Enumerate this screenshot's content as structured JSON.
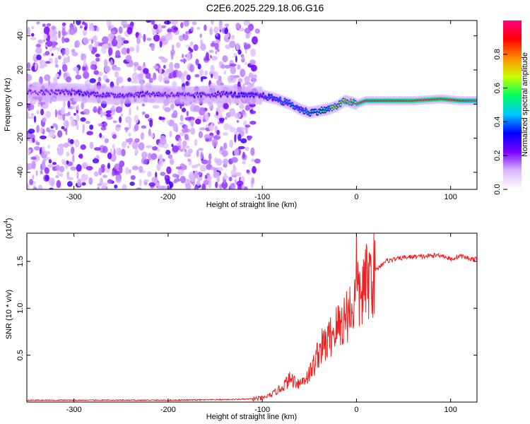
{
  "title": "C2E6.2025.229.18.06.G16",
  "chart_data": [
    {
      "type": "heatmap",
      "xlabel": "Height of straight line (km)",
      "ylabel": "Frequency (Hz)",
      "xlim": [
        -350,
        128
      ],
      "ylim": [
        -50,
        49
      ],
      "x_ticks": [
        -300,
        -200,
        -100,
        0,
        100
      ],
      "y_ticks": [
        -40,
        -20,
        0,
        20,
        40
      ],
      "colorbar": {
        "label": "Normalized spectral amplitude",
        "range": [
          0,
          1
        ],
        "ticks": [
          "0.0",
          "0.2",
          "0.4",
          "0.6",
          "0.8"
        ],
        "colors": [
          "#ffffff",
          "#d9b8ff",
          "#7a00ff",
          "#0000ff",
          "#00c8ff",
          "#00ff60",
          "#c8ff00",
          "#ff8c00",
          "#ff0000",
          "#ff0080"
        ]
      },
      "ridge": {
        "x": [
          -340,
          -300,
          -260,
          -220,
          -180,
          -140,
          -120,
          -100,
          -85,
          -70,
          -60,
          -50,
          -40,
          -30,
          -20,
          -12,
          -5,
          0,
          10,
          30,
          60,
          90,
          110,
          128
        ],
        "freq": [
          7,
          7,
          5,
          6,
          5,
          6,
          5,
          5,
          3,
          0,
          -3,
          -5,
          -4,
          -3,
          -1,
          2,
          1,
          0,
          2,
          2,
          2,
          3,
          2,
          2
        ],
        "amplitude": [
          0.25,
          0.3,
          0.3,
          0.3,
          0.28,
          0.3,
          0.35,
          0.35,
          0.45,
          0.5,
          0.45,
          0.55,
          0.6,
          0.65,
          0.75,
          0.8,
          0.8,
          0.85,
          0.9,
          0.92,
          0.95,
          0.95,
          0.9,
          0.85
        ]
      },
      "noise_region_x": [
        -350,
        -105
      ]
    },
    {
      "type": "line",
      "xlabel": "Height of straight line (km)",
      "ylabel": "SNR (10 * v/v)",
      "scale_note": "(x10",
      "scale_exp": "4",
      "xlim": [
        -350,
        128
      ],
      "ylim": [
        0,
        1.8
      ],
      "x_ticks": [
        -300,
        -200,
        -100,
        0,
        100
      ],
      "y_ticks": [
        "0.5",
        "1.0",
        "1.5"
      ],
      "color": "#ee2222",
      "series": [
        {
          "x": [
            -350,
            -300,
            -250,
            -200,
            -150,
            -120,
            -100,
            -90,
            -80,
            -70,
            -60,
            -50,
            -45,
            -40,
            -35,
            -30,
            -25,
            -20,
            -15,
            -10,
            -5,
            0,
            5,
            10,
            15,
            20,
            25,
            30,
            40,
            50,
            60,
            70,
            80,
            90,
            100,
            110,
            120,
            128
          ],
          "y": [
            0.02,
            0.02,
            0.02,
            0.02,
            0.025,
            0.03,
            0.04,
            0.08,
            0.15,
            0.25,
            0.2,
            0.3,
            0.4,
            0.55,
            0.6,
            0.65,
            0.75,
            0.8,
            0.85,
            0.95,
            1.0,
            1.1,
            1.15,
            1.25,
            1.35,
            1.4,
            1.45,
            1.5,
            1.52,
            1.54,
            1.55,
            1.55,
            1.56,
            1.57,
            1.52,
            1.56,
            1.53,
            1.52
          ]
        }
      ]
    }
  ]
}
